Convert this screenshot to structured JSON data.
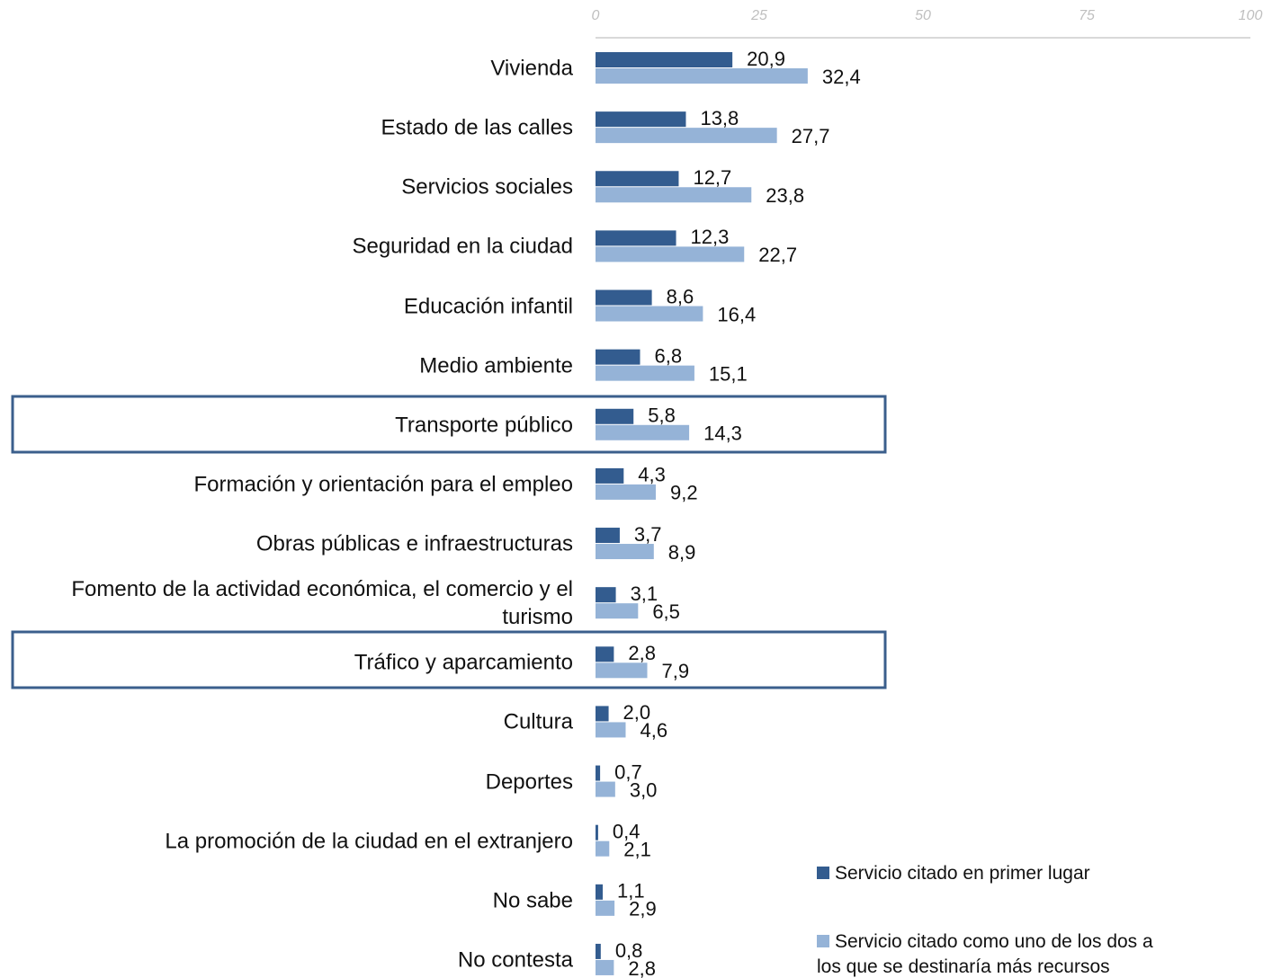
{
  "chart_data": {
    "type": "bar",
    "orientation": "horizontal",
    "categories": [
      "Vivienda",
      "Estado de las calles",
      "Servicios sociales",
      "Seguridad en la ciudad",
      "Educación infantil",
      "Medio ambiente",
      "Transporte público",
      "Formación y orientación para el empleo",
      "Obras públicas e infraestructuras",
      "Fomento de la actividad económica, el comercio y el turismo",
      "Tráfico y aparcamiento",
      "Cultura",
      "Deportes",
      "La promoción de la ciudad en el extranjero",
      "No sabe",
      "No contesta"
    ],
    "series": [
      {
        "name": "Servicio citado en primer lugar",
        "color": "#335c8f",
        "values": [
          20.9,
          13.8,
          12.7,
          12.3,
          8.6,
          6.8,
          5.8,
          4.3,
          3.7,
          3.1,
          2.8,
          2.0,
          0.7,
          0.4,
          1.1,
          0.8
        ],
        "value_labels": [
          "20,9",
          "13,8",
          "12,7",
          "12,3",
          "8,6",
          "6,8",
          "5,8",
          "4,3",
          "3,7",
          "3,1",
          "2,8",
          "2,0",
          "0,7",
          "0,4",
          "1,1",
          "0,8"
        ]
      },
      {
        "name": "Servicio citado como uno de los dos a los que se destinaría más recursos",
        "color": "#95b3d7",
        "values": [
          32.4,
          27.7,
          23.8,
          22.7,
          16.4,
          15.1,
          14.3,
          9.2,
          8.9,
          6.5,
          7.9,
          4.6,
          3.0,
          2.1,
          2.9,
          2.8
        ],
        "value_labels": [
          "32,4",
          "27,7",
          "23,8",
          "22,7",
          "16,4",
          "15,1",
          "14,3",
          "9,2",
          "8,9",
          "6,5",
          "7,9",
          "4,6",
          "3,0",
          "2,1",
          "2,9",
          "2,8"
        ]
      }
    ],
    "xlim": [
      0,
      100
    ],
    "xticks": [
      0,
      25,
      50,
      75,
      100
    ],
    "grid": false,
    "legend": "lower right"
  }
}
